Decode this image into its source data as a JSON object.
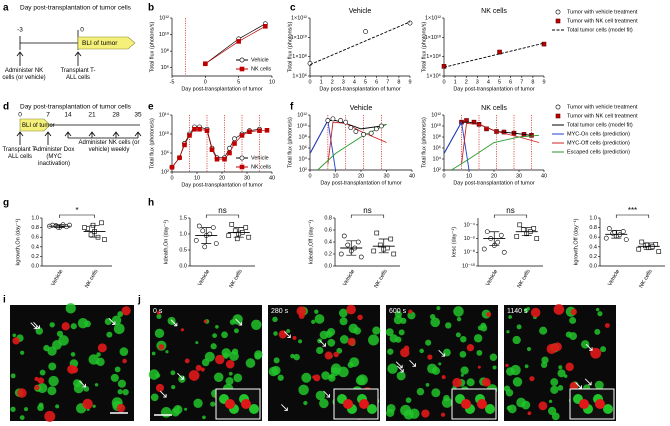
{
  "panel_labels": [
    "a",
    "b",
    "c",
    "d",
    "e",
    "f",
    "g",
    "h",
    "i",
    "j"
  ],
  "timeline_a": {
    "title": "Day post-transplantation of tumor cells",
    "ticks": [
      "-3",
      "0"
    ],
    "bar": "BLI of tumor",
    "events": [
      "Administer NK cells (or vehicle)",
      "Transplant T-ALL cells"
    ]
  },
  "timeline_d": {
    "title": "Day post-transplantation of tumor cells",
    "ticks": [
      "0",
      "7",
      "14",
      "21",
      "28",
      "35"
    ],
    "bar": "BLI of tumor",
    "events": [
      "Transplant T-ALL cells",
      "Administer Dox (MYC inactivation)",
      "Administer NK cells (or vehicle) weekly"
    ]
  },
  "micrographs": {
    "times": [
      "0 s",
      "280 s",
      "600 s",
      "1140 s"
    ]
  },
  "chart_data": [
    {
      "type": "line",
      "log": true,
      "xlabel": "Day post-transplantation of tumor",
      "ylabel": "Total flux (photons/s)",
      "xlim": [
        -5,
        10
      ],
      "xticks": [
        -5,
        0,
        5,
        10
      ],
      "ylim": [
        100000,
        1000000000000
      ],
      "yticks": [
        {
          "value": 1000000,
          "label": "10⁶"
        },
        {
          "value": 100000000,
          "label": "10⁸"
        },
        {
          "value": 10000000000,
          "label": "10¹⁰"
        },
        {
          "value": 1000000000000,
          "label": "10¹²"
        }
      ],
      "vlines": [
        -3
      ],
      "series": [
        {
          "name": "Vehicle",
          "color": "#000000",
          "fill": "#ffffff",
          "marker": "circle",
          "line": true,
          "x": [
            0,
            5,
            9
          ],
          "values": [
            3000000,
            3000000000,
            200000000000
          ]
        },
        {
          "name": "NK cells",
          "color": "#c00000",
          "fill": "#c00000",
          "marker": "square",
          "line": true,
          "x": [
            0,
            5,
            9
          ],
          "values": [
            3000000,
            1500000000,
            100000000000
          ]
        }
      ]
    },
    {
      "type": "line",
      "log": true,
      "title": "Vehicle",
      "xlabel": "Day post-transplantation of tumor",
      "ylabel": "Total flux (photons/s)",
      "xlim": [
        0,
        9
      ],
      "xticks": [
        0,
        1,
        2,
        3,
        4,
        5,
        6,
        7,
        8,
        9
      ],
      "ylim": [
        1000000,
        1000000000000
      ],
      "yticks": [
        {
          "value": 1000000,
          "label": "1×10⁶"
        },
        {
          "value": 100000000,
          "label": "1×10⁸"
        },
        {
          "value": 10000000000,
          "label": "1×10¹⁰"
        },
        {
          "value": 1000000000000,
          "label": "1×10¹²"
        }
      ],
      "series": [
        {
          "name": "Tumor with vehicle treatment",
          "color": "#000000",
          "fill": "#ffffff",
          "marker": "circle",
          "line": false,
          "x": [
            0,
            5,
            9
          ],
          "values": [
            20000000,
            40000000000,
            300000000000
          ]
        },
        {
          "color": "#000000",
          "dash": true,
          "line": true,
          "x": [
            0,
            9
          ],
          "values": [
            15000000,
            400000000000
          ]
        }
      ]
    },
    {
      "type": "line",
      "log": true,
      "title": "NK cells",
      "xlabel": "Day post-transplantation of tumor",
      "ylabel": "Total flux (photons/s)",
      "xlim": [
        0,
        9
      ],
      "xticks": [
        0,
        1,
        2,
        3,
        4,
        5,
        6,
        7,
        8,
        9
      ],
      "ylim": [
        1000000,
        1000000000000
      ],
      "yticks": [
        {
          "value": 1000000,
          "label": "1×10⁶"
        },
        {
          "value": 100000000,
          "label": "1×10⁸"
        },
        {
          "value": 10000000000,
          "label": "1×10¹⁰"
        },
        {
          "value": 1000000000000,
          "label": "1×10¹²"
        }
      ],
      "series": [
        {
          "name": "Tumor with NK cell treatment",
          "color": "#600000",
          "fill": "#c00000",
          "marker": "square",
          "line": false,
          "x": [
            0,
            5,
            9
          ],
          "values": [
            10000000,
            300000000,
            2000000000
          ]
        },
        {
          "name": "Total tumor cells (model fit)",
          "color": "#000000",
          "dash": true,
          "line": true,
          "x": [
            0,
            9
          ],
          "values": [
            8000000,
            2500000000
          ]
        }
      ]
    },
    {
      "type": "line",
      "log": true,
      "xlabel": "Day post-transplantation of tumor",
      "ylabel": "Total flux (photons/s)",
      "xlim": [
        0,
        40
      ],
      "xticks": [
        0,
        10,
        20,
        30,
        40
      ],
      "ylim": [
        100,
        100000000000000
      ],
      "yticks": [
        {
          "value": 100,
          "label": "10²"
        },
        {
          "value": 1000000,
          "label": "10⁶"
        },
        {
          "value": 10000000000,
          "label": "10¹⁰"
        },
        {
          "value": 100000000000000,
          "label": "10¹⁴"
        }
      ],
      "vlines": [
        7,
        14,
        21,
        28,
        35
      ],
      "series": [
        {
          "name": "Vehicle",
          "color": "#000000",
          "fill": "#ffffff",
          "marker": "circle",
          "line": true,
          "x": [
            0,
            3,
            5,
            7,
            9,
            11,
            14,
            16,
            18,
            21,
            23,
            25,
            28,
            31,
            35
          ],
          "values": [
            1000,
            100000,
            100000000,
            10000000000,
            300000000000,
            300000000000,
            100000000000,
            10000000,
            100000,
            100000,
            10000000,
            1000000000,
            10000000000,
            50000000000,
            100000000000
          ]
        },
        {
          "name": "NK cells",
          "color": "#c00000",
          "fill": "#c00000",
          "marker": "square",
          "line": true,
          "x": [
            0,
            3,
            5,
            7,
            9,
            11,
            14,
            16,
            18,
            21,
            23,
            25,
            28,
            31,
            35,
            38
          ],
          "values": [
            1000,
            100000,
            50000000,
            5000000000,
            100000000000,
            100000000000,
            50000000000,
            5000000,
            50000,
            50000,
            1000000,
            100000000,
            5000000000,
            30000000000,
            50000000000,
            60000000000
          ]
        }
      ]
    },
    {
      "type": "line",
      "log": true,
      "title": "Vehicle",
      "xlabel": "Day post-transplantation of tumor",
      "ylabel": "Total flux (photons/s)",
      "xlim": [
        0,
        40
      ],
      "xticks": [
        0,
        10,
        20,
        30,
        40
      ],
      "ylim": [
        100,
        1000000000000
      ],
      "yticks": [
        {
          "value": 100,
          "label": "10²"
        },
        {
          "value": 10000,
          "label": "10⁴"
        },
        {
          "value": 1000000,
          "label": "10⁶"
        },
        {
          "value": 100000000,
          "label": "10⁸"
        },
        {
          "value": 10000000000,
          "label": "10¹⁰"
        },
        {
          "value": 1000000000000,
          "label": "10¹²"
        }
      ],
      "vlines": [
        7,
        14,
        21,
        28
      ],
      "series": [
        {
          "color": "#000000",
          "line": true,
          "x": [
            0,
            7,
            10,
            14,
            20,
            28,
            30
          ],
          "values": [
            100000,
            100000000000,
            100000000000,
            30000000000,
            3000000000,
            10000000000,
            20000000000
          ]
        },
        {
          "color": "#1f3fd0",
          "line": true,
          "x": [
            0,
            7,
            9,
            10
          ],
          "values": [
            100000,
            100000000000,
            100000,
            100
          ]
        },
        {
          "color": "#d02020",
          "line": true,
          "x": [
            7,
            9,
            14,
            20,
            30
          ],
          "values": [
            1000,
            50000000000,
            30000000000,
            1000000000,
            10000000
          ]
        },
        {
          "color": "#2a9a2a",
          "line": true,
          "x": [
            3,
            10,
            20,
            30
          ],
          "values": [
            100,
            100000,
            100000000,
            20000000000
          ]
        },
        {
          "name": "Tumor with vehicle treatment",
          "color": "#000000",
          "fill": "#ffffff",
          "marker": "circle",
          "line": false,
          "x": [
            7,
            9,
            12,
            14,
            16,
            18,
            21,
            24,
            26,
            28
          ],
          "values": [
            100000000000,
            200000000000,
            100000000000,
            50000000000,
            5000000000,
            1000000000,
            300000000,
            500000000,
            3000000000,
            10000000000
          ]
        }
      ]
    },
    {
      "type": "line",
      "log": true,
      "title": "NK cells",
      "xlabel": "Day post-transplantation of tumor",
      "ylabel": "Total flux (photons/s)",
      "xlim": [
        0,
        40
      ],
      "xticks": [
        0,
        10,
        20,
        30,
        40
      ],
      "ylim": [
        100,
        1000000000000
      ],
      "yticks": [
        {
          "value": 100,
          "label": "10²"
        },
        {
          "value": 10000,
          "label": "10⁴"
        },
        {
          "value": 1000000,
          "label": "10⁶"
        },
        {
          "value": 100000000,
          "label": "10⁸"
        },
        {
          "value": 10000000000,
          "label": "10¹⁰"
        },
        {
          "value": 1000000000000,
          "label": "10¹²"
        }
      ],
      "vlines": [
        7,
        14,
        21,
        28,
        35
      ],
      "series": [
        {
          "name": "Tumor with NK cell treatment",
          "color": "#600000",
          "fill": "#c00000",
          "marker": "square",
          "line": false,
          "x": [
            7,
            9,
            12,
            14,
            17,
            21,
            24,
            28,
            32,
            35
          ],
          "values": [
            50000000000,
            100000000000,
            50000000000,
            20000000000,
            3000000000,
            1000000000,
            800000000,
            500000000,
            300000000,
            200000000
          ]
        },
        {
          "name": "Total tumor cells (model fit)",
          "color": "#000000",
          "line": true,
          "x": [
            0,
            7,
            10,
            14,
            21,
            28,
            35
          ],
          "values": [
            100000,
            50000000000,
            50000000000,
            20000000000,
            1000000000,
            500000000,
            200000000
          ]
        },
        {
          "name": "MYC-On cells (prediction)",
          "color": "#1f3fd0",
          "line": true,
          "x": [
            0,
            7,
            9,
            10
          ],
          "values": [
            100000,
            50000000000,
            100000,
            100
          ]
        },
        {
          "name": "MYC-Off cells (prediction)",
          "color": "#d02020",
          "line": true,
          "x": [
            7,
            9,
            14,
            21,
            30,
            38
          ],
          "values": [
            1000,
            30000000000,
            20000000000,
            1000000000,
            100000000,
            10000000
          ]
        },
        {
          "name": "Escaped cells (prediction)",
          "color": "#2a9a2a",
          "line": true,
          "x": [
            3,
            10,
            20,
            30,
            38
          ],
          "values": [
            100,
            10000,
            10000000,
            100000000,
            200000000
          ]
        }
      ]
    },
    {
      "type": "strip",
      "ylabel": "kgrowth,On (day⁻¹)",
      "annotation": "*",
      "categories": [
        "Vehicle",
        "NK cells"
      ],
      "markers": [
        "circle",
        "square"
      ],
      "ylim": [
        0,
        1
      ],
      "yticks": [
        {
          "value": 0,
          "label": "0.0"
        },
        0.2,
        0.4,
        0.6,
        0.8,
        {
          "value": 1,
          "label": "1.0"
        }
      ],
      "values": [
        [
          0.85,
          0.82,
          0.84,
          0.86,
          0.8,
          0.83,
          0.85,
          0.81
        ],
        [
          0.78,
          0.9,
          0.65,
          0.6,
          0.72,
          0.8,
          0.55,
          0.85
        ]
      ],
      "means": [
        0.83,
        0.72
      ],
      "lower": [
        0.8,
        0.6
      ],
      "upper": [
        0.86,
        0.84
      ]
    },
    {
      "type": "strip",
      "ylabel": "kdeath,On (day⁻¹)",
      "annotation": "ns",
      "categories": [
        "Vehicle",
        "NK cells"
      ],
      "markers": [
        "circle",
        "square"
      ],
      "ylim": [
        0,
        1.5
      ],
      "yticks": [
        {
          "value": 0,
          "label": "0.0"
        },
        0.5,
        {
          "value": 1,
          "label": "1.0"
        },
        1.5
      ],
      "values": [
        [
          1.25,
          1.2,
          1.1,
          1.0,
          0.95,
          0.8,
          0.7,
          0.6
        ],
        [
          1.3,
          1.2,
          1.1,
          1.05,
          1.0,
          0.95,
          0.9,
          0.85
        ]
      ],
      "means": [
        0.95,
        1.05
      ],
      "lower": [
        0.7,
        0.9
      ],
      "upper": [
        1.2,
        1.2
      ]
    },
    {
      "type": "strip",
      "ylabel": "kdeath,Off (day⁻¹)",
      "annotation": "ns",
      "categories": [
        "Vehicle",
        "NK cells"
      ],
      "markers": [
        "circle",
        "square"
      ],
      "ylim": [
        0,
        0.8
      ],
      "yticks": [
        {
          "value": 0,
          "label": "0.0"
        },
        0.2,
        0.4,
        0.6,
        0.8
      ],
      "values": [
        [
          0.5,
          0.4,
          0.35,
          0.3,
          0.25,
          0.2,
          0.15
        ],
        [
          0.55,
          0.45,
          0.35,
          0.3,
          0.28,
          0.25,
          0.2
        ]
      ],
      "means": [
        0.3,
        0.33
      ],
      "lower": [
        0.18,
        0.22
      ],
      "upper": [
        0.42,
        0.45
      ]
    },
    {
      "type": "strip",
      "log": true,
      "ylabel": "kesc (day⁻¹)",
      "annotation": "ns",
      "categories": [
        "Vehicle",
        "NK cells"
      ],
      "markers": [
        "circle",
        "square"
      ],
      "ylim": [
        1e-10,
        0.001
      ],
      "yticks": [
        {
          "value": 1e-10,
          "label": "10⁻¹⁰"
        },
        {
          "value": 1e-08,
          "label": "10⁻⁸"
        },
        {
          "value": 1e-06,
          "label": "10⁻⁶"
        },
        {
          "value": 0.0001,
          "label": "10⁻⁴"
        }
      ],
      "values": [
        [
          1e-05,
          3e-06,
          1e-06,
          3e-07,
          1e-07,
          3e-08,
          1e-08
        ],
        [
          0.0001,
          3e-05,
          2e-05,
          1e-05,
          5e-06,
          2e-06,
          1e-06
        ]
      ],
      "means": [
        1e-06,
        1e-05
      ],
      "lower": [
        1e-07,
        3e-06
      ],
      "upper": [
        1e-05,
        4e-05
      ]
    },
    {
      "type": "strip",
      "ylabel": "kgrowth,Off (day⁻¹)",
      "annotation": "***",
      "categories": [
        "Vehicle",
        "NK cells"
      ],
      "markers": [
        "circle",
        "square"
      ],
      "ylim": [
        0,
        1
      ],
      "yticks": [
        {
          "value": 0,
          "label": "0.0"
        },
        0.2,
        0.4,
        0.6,
        0.8,
        {
          "value": 1,
          "label": "1.0"
        }
      ],
      "values": [
        [
          0.78,
          0.72,
          0.68,
          0.65,
          0.62,
          0.58,
          0.55,
          0.7
        ],
        [
          0.5,
          0.45,
          0.42,
          0.4,
          0.38,
          0.35,
          0.3,
          0.44
        ]
      ],
      "means": [
        0.66,
        0.41
      ],
      "lower": [
        0.58,
        0.34
      ],
      "upper": [
        0.74,
        0.48
      ]
    }
  ]
}
